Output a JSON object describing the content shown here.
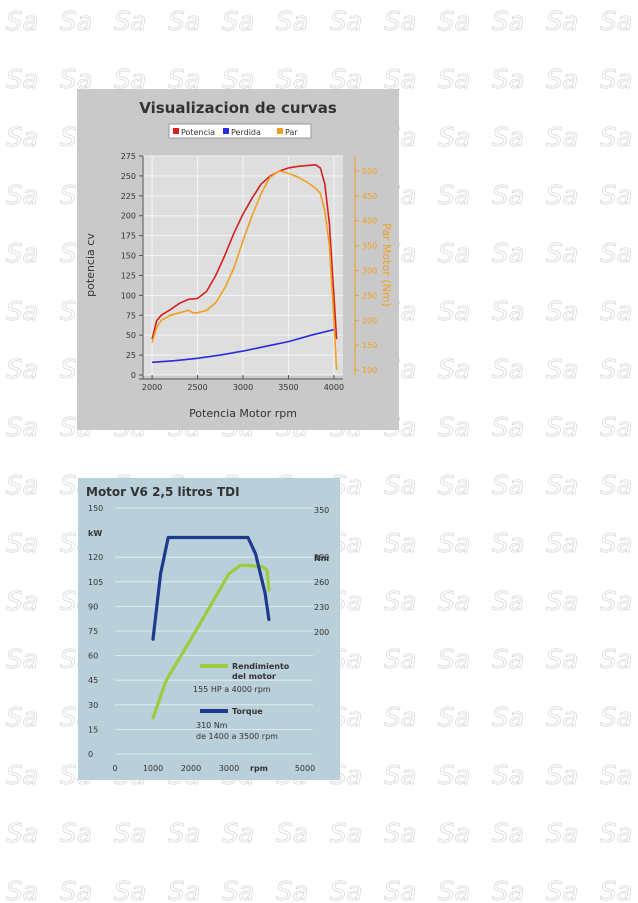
{
  "chart_data": [
    {
      "type": "line",
      "title": "Visualizacion de curvas",
      "xlabel": "Potencia Motor rpm",
      "ylabel": "potencia cv",
      "y2label": "Par Motor (Nm)",
      "xlim": [
        1900,
        4100
      ],
      "ylim": [
        0,
        275
      ],
      "y2lim": [
        90,
        530
      ],
      "xticks": [
        2000,
        2500,
        3000,
        3500,
        4000
      ],
      "yticks": [
        0,
        25,
        50,
        75,
        100,
        125,
        150,
        175,
        200,
        225,
        250,
        275
      ],
      "y2ticks": [
        100,
        150,
        200,
        250,
        300,
        350,
        400,
        450,
        500
      ],
      "grid": true,
      "legend_position": "top",
      "legend": [
        "Potencia",
        "Perdida",
        "Par"
      ],
      "series": [
        {
          "name": "Potencia",
          "color": "#d62020",
          "axis": "left",
          "points": [
            [
              2000,
              45
            ],
            [
              2050,
              68
            ],
            [
              2100,
              75
            ],
            [
              2200,
              82
            ],
            [
              2300,
              90
            ],
            [
              2400,
              95
            ],
            [
              2500,
              96
            ],
            [
              2600,
              105
            ],
            [
              2700,
              125
            ],
            [
              2800,
              150
            ],
            [
              2900,
              178
            ],
            [
              3000,
              202
            ],
            [
              3100,
              222
            ],
            [
              3200,
              240
            ],
            [
              3300,
              250
            ],
            [
              3400,
              256
            ],
            [
              3500,
              260
            ],
            [
              3600,
              262
            ],
            [
              3700,
              263
            ],
            [
              3800,
              264
            ],
            [
              3850,
              260
            ],
            [
              3900,
              240
            ],
            [
              3950,
              190
            ],
            [
              4000,
              100
            ],
            [
              4030,
              45
            ]
          ]
        },
        {
          "name": "Perdida",
          "color": "#2a2ae0",
          "axis": "left",
          "points": [
            [
              2000,
              16
            ],
            [
              2250,
              18
            ],
            [
              2500,
              21
            ],
            [
              2750,
              25
            ],
            [
              3000,
              30
            ],
            [
              3250,
              36
            ],
            [
              3500,
              42
            ],
            [
              3750,
              50
            ],
            [
              4000,
              57
            ]
          ]
        },
        {
          "name": "Par",
          "color": "#f0a020",
          "axis": "right",
          "points": [
            [
              2000,
              155
            ],
            [
              2050,
              185
            ],
            [
              2100,
              200
            ],
            [
              2200,
              210
            ],
            [
              2300,
              215
            ],
            [
              2400,
              220
            ],
            [
              2450,
              215
            ],
            [
              2500,
              215
            ],
            [
              2600,
              220
            ],
            [
              2700,
              235
            ],
            [
              2800,
              265
            ],
            [
              2900,
              305
            ],
            [
              3000,
              360
            ],
            [
              3100,
              410
            ],
            [
              3200,
              455
            ],
            [
              3300,
              488
            ],
            [
              3400,
              500
            ],
            [
              3500,
              495
            ],
            [
              3600,
              488
            ],
            [
              3700,
              478
            ],
            [
              3800,
              465
            ],
            [
              3850,
              455
            ],
            [
              3900,
              420
            ],
            [
              3950,
              350
            ],
            [
              4000,
              200
            ],
            [
              4030,
              100
            ]
          ]
        }
      ]
    },
    {
      "type": "line",
      "title": "Motor V6 2,5 litros TDI",
      "ylabel": "kW",
      "y2label": "Nm",
      "xlabel": "rpm",
      "xlim": [
        0,
        5000
      ],
      "ylim": [
        0,
        150
      ],
      "y2ticks_top": "350",
      "xticks": [
        0,
        1000,
        2000,
        3000,
        5000
      ],
      "yticks": [
        0,
        15,
        30,
        45,
        60,
        75,
        90,
        105,
        120,
        150
      ],
      "y2ticks": [
        200,
        230,
        260,
        290,
        350
      ],
      "series": [
        {
          "name": "Rendimiento del motor",
          "color": "#9ccc3c",
          "axis": "left",
          "points": [
            [
              1000,
              22
            ],
            [
              1350,
              45
            ],
            [
              2000,
              70
            ],
            [
              3000,
              110
            ],
            [
              3300,
              115
            ],
            [
              3500,
              115
            ],
            [
              3900,
              114
            ],
            [
              4000,
              112
            ],
            [
              4050,
              100
            ]
          ]
        },
        {
          "name": "Torque",
          "color": "#1e3a8c",
          "axis": "left",
          "points": [
            [
              1000,
              70
            ],
            [
              1200,
              110
            ],
            [
              1400,
              132
            ],
            [
              3500,
              132
            ],
            [
              3700,
              122
            ],
            [
              3950,
              98
            ],
            [
              4050,
              82
            ]
          ]
        }
      ],
      "annotations": [
        {
          "lines": [
            "Rendimiento",
            "del motor"
          ],
          "detail": "155 HP a 4000 rpm",
          "color": "#9ccc3c"
        },
        {
          "lines": [
            "Torque"
          ],
          "detail": [
            "310 Nm",
            "de 1400 a 3500 rpm"
          ],
          "color": "#1e3a8c"
        }
      ]
    }
  ]
}
